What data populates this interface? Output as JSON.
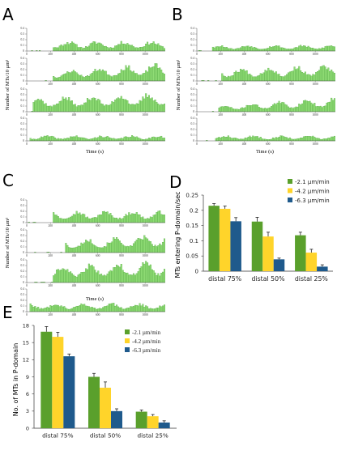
{
  "panels": {
    "A": {
      "letter": "A",
      "ylabel": "Number of MTs/10 µm²",
      "xlabel": "Time (s)",
      "traces": [
        {
          "level": 0.15,
          "ramp": 0.0,
          "variation": 0.45,
          "onset_s": 220,
          "seed": 11
        },
        {
          "level": 0.22,
          "ramp": 0.6,
          "variation": 0.35,
          "onset_s": 220,
          "seed": 23
        },
        {
          "level": 0.26,
          "ramp": 0.3,
          "variation": 0.35,
          "onset_s": 40,
          "seed": 37
        },
        {
          "level": 0.08,
          "ramp": 0.0,
          "variation": 0.5,
          "onset_s": 20,
          "seed": 41
        }
      ]
    },
    "B": {
      "letter": "B",
      "ylabel": "Number of MTs/10 µm²",
      "xlabel": "Time (s)",
      "traces": [
        {
          "level": 0.09,
          "ramp": 0.0,
          "variation": 0.4,
          "onset_s": 120,
          "seed": 53
        },
        {
          "level": 0.22,
          "ramp": 0.3,
          "variation": 0.35,
          "onset_s": 200,
          "seed": 67
        },
        {
          "level": 0.16,
          "ramp": 0.9,
          "variation": 0.35,
          "onset_s": 180,
          "seed": 71
        },
        {
          "level": 0.08,
          "ramp": 0.0,
          "variation": 0.5,
          "onset_s": 150,
          "seed": 83
        }
      ]
    },
    "C": {
      "letter": "C",
      "ylabel": "Number of MTs/10 µm²",
      "xlabel": "Time (s)",
      "traces": [
        {
          "level": 0.18,
          "ramp": 0.0,
          "variation": 0.4,
          "onset_s": 220,
          "seed": 97
        },
        {
          "level": 0.24,
          "ramp": 0.4,
          "variation": 0.35,
          "onset_s": 320,
          "seed": 101
        },
        {
          "level": 0.3,
          "ramp": 0.3,
          "variation": 0.35,
          "onset_s": 220,
          "seed": 113
        },
        {
          "level": 0.13,
          "ramp": 0.0,
          "variation": 0.45,
          "onset_s": 20,
          "seed": 127
        }
      ]
    }
  },
  "trace_axes": {
    "x_ticks": [
      "0",
      "200",
      "400",
      "600",
      "800",
      "1000"
    ],
    "y_ticks": [
      "0",
      "0.1",
      "0.2",
      "0.3",
      "0.4"
    ],
    "y_max": 0.4,
    "x_max": 1170,
    "bar_count": 90
  },
  "legend": {
    "entries": [
      "-2.1 µm/min",
      "-4.2 µm/min",
      "-6.3 µm/min"
    ]
  },
  "colors": {
    "green": "#5aa02c",
    "yellow": "#ffd42a",
    "blue": "#1f5a8c",
    "trace_fill": "#8fdc75",
    "trace_edge": "#3c9a2a",
    "axis": "#555555"
  },
  "chart_data": [
    {
      "panel": "D",
      "type": "bar",
      "ylabel": "MTs entering P-domain/sec",
      "categories": [
        "distal 75%",
        "distal 50%",
        "distal 25%"
      ],
      "ylim": [
        0,
        0.25
      ],
      "y_ticks": [
        "0",
        "0.05",
        "0.1",
        "0.15",
        "0.2",
        "0.25"
      ],
      "legend_position": "top-right",
      "series": [
        {
          "name": "-2.1 µm/min",
          "values": [
            0.215,
            0.163,
            0.118
          ],
          "errors": [
            0.007,
            0.014,
            0.01
          ]
        },
        {
          "name": "-4.2 µm/min",
          "values": [
            0.205,
            0.114,
            0.061
          ],
          "errors": [
            0.009,
            0.014,
            0.011
          ]
        },
        {
          "name": "-6.3 µm/min",
          "values": [
            0.164,
            0.039,
            0.015
          ],
          "errors": [
            0.012,
            0.004,
            0.006
          ]
        }
      ]
    },
    {
      "panel": "E",
      "type": "bar",
      "ylabel": "No. of MTs in P-domain",
      "categories": [
        "distal 75%",
        "distal 50%",
        "distal 25%"
      ],
      "ylim": [
        0,
        18
      ],
      "y_ticks": [
        "0",
        "3",
        "6",
        "9",
        "12",
        "15",
        "18"
      ],
      "legend_position": "top-right",
      "series": [
        {
          "name": "-2.1 µm/min",
          "values": [
            16.9,
            9.0,
            2.9
          ],
          "errors": [
            0.9,
            0.6,
            0.3
          ]
        },
        {
          "name": "-4.2 µm/min",
          "values": [
            16.0,
            7.1,
            2.1
          ],
          "errors": [
            0.8,
            1.0,
            0.3
          ]
        },
        {
          "name": "-6.3 µm/min",
          "values": [
            12.6,
            3.0,
            1.0
          ],
          "errors": [
            0.4,
            0.4,
            0.3
          ]
        }
      ]
    }
  ]
}
